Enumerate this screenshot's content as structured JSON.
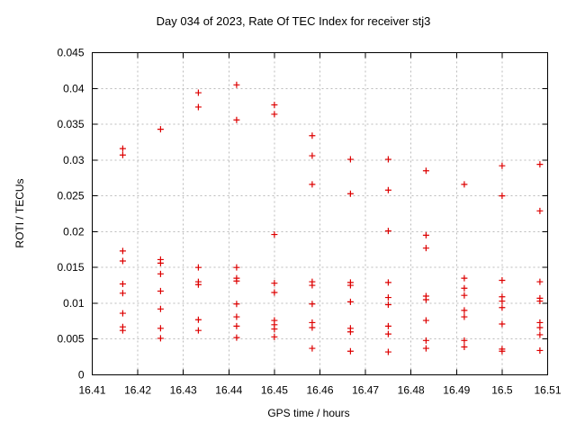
{
  "chart": {
    "title": "Day 034 of 2023, Rate Of TEC Index for receiver stj3",
    "xlabel": "GPS time / hours",
    "ylabel": "ROTI / TECUs"
  },
  "chart_data": {
    "type": "scatter",
    "title": "Day 034 of 2023, Rate Of TEC Index for receiver stj3",
    "xlabel": "GPS time / hours",
    "ylabel": "ROTI / TECUs",
    "xlim": [
      16.41,
      16.51
    ],
    "ylim": [
      0,
      0.045
    ],
    "xticks": [
      16.41,
      16.42,
      16.43,
      16.44,
      16.45,
      16.46,
      16.47,
      16.48,
      16.49,
      16.5,
      16.51
    ],
    "xtick_labels": [
      "16.41",
      "16.42",
      "16.43",
      "16.44",
      "16.45",
      "16.46",
      "16.47",
      "16.48",
      "16.49",
      "16.5",
      "16.51"
    ],
    "yticks": [
      0,
      0.005,
      0.01,
      0.015,
      0.02,
      0.025,
      0.03,
      0.035,
      0.04,
      0.045
    ],
    "ytick_labels": [
      "0",
      "0.005",
      "0.01",
      "0.015",
      "0.02",
      "0.025",
      "0.03",
      "0.035",
      "0.04",
      "0.045"
    ],
    "grid": true,
    "legend_position": "none",
    "marker": "plus",
    "colors": {
      "marker": "#dd0000",
      "grid": "#bbbbbb",
      "axis": "#000000",
      "background": "#ffffff"
    },
    "points": [
      [
        16.4167,
        0.0316
      ],
      [
        16.4167,
        0.0307
      ],
      [
        16.4167,
        0.0173
      ],
      [
        16.4167,
        0.0159
      ],
      [
        16.4167,
        0.0127
      ],
      [
        16.4167,
        0.0114
      ],
      [
        16.4167,
        0.0086
      ],
      [
        16.4167,
        0.0067
      ],
      [
        16.4167,
        0.0062
      ],
      [
        16.425,
        0.0343
      ],
      [
        16.425,
        0.0161
      ],
      [
        16.425,
        0.0156
      ],
      [
        16.425,
        0.0141
      ],
      [
        16.425,
        0.0117
      ],
      [
        16.425,
        0.0092
      ],
      [
        16.425,
        0.0065
      ],
      [
        16.425,
        0.0051
      ],
      [
        16.4333,
        0.0394
      ],
      [
        16.4333,
        0.0374
      ],
      [
        16.4333,
        0.015
      ],
      [
        16.4333,
        0.013
      ],
      [
        16.4333,
        0.0126
      ],
      [
        16.4333,
        0.0077
      ],
      [
        16.4333,
        0.0062
      ],
      [
        16.4417,
        0.0405
      ],
      [
        16.4417,
        0.0356
      ],
      [
        16.4417,
        0.015
      ],
      [
        16.4417,
        0.0135
      ],
      [
        16.4417,
        0.0131
      ],
      [
        16.4417,
        0.0099
      ],
      [
        16.4417,
        0.0081
      ],
      [
        16.4417,
        0.0068
      ],
      [
        16.4417,
        0.0052
      ],
      [
        16.45,
        0.0377
      ],
      [
        16.45,
        0.0364
      ],
      [
        16.45,
        0.0196
      ],
      [
        16.45,
        0.0128
      ],
      [
        16.45,
        0.0115
      ],
      [
        16.45,
        0.0076
      ],
      [
        16.45,
        0.007
      ],
      [
        16.45,
        0.0064
      ],
      [
        16.45,
        0.0053
      ],
      [
        16.4583,
        0.0334
      ],
      [
        16.4583,
        0.0306
      ],
      [
        16.4583,
        0.0266
      ],
      [
        16.4583,
        0.013
      ],
      [
        16.4583,
        0.0125
      ],
      [
        16.4583,
        0.0099
      ],
      [
        16.4583,
        0.0073
      ],
      [
        16.4583,
        0.0066
      ],
      [
        16.4583,
        0.0037
      ],
      [
        16.4667,
        0.0301
      ],
      [
        16.4667,
        0.0253
      ],
      [
        16.4667,
        0.0129
      ],
      [
        16.4667,
        0.0125
      ],
      [
        16.4667,
        0.0102
      ],
      [
        16.4667,
        0.0065
      ],
      [
        16.4667,
        0.006
      ],
      [
        16.4667,
        0.0033
      ],
      [
        16.475,
        0.0301
      ],
      [
        16.475,
        0.0258
      ],
      [
        16.475,
        0.0201
      ],
      [
        16.475,
        0.0129
      ],
      [
        16.475,
        0.0108
      ],
      [
        16.475,
        0.0098
      ],
      [
        16.475,
        0.0068
      ],
      [
        16.475,
        0.0057
      ],
      [
        16.475,
        0.0032
      ],
      [
        16.4833,
        0.0285
      ],
      [
        16.4833,
        0.0195
      ],
      [
        16.4833,
        0.0177
      ],
      [
        16.4833,
        0.011
      ],
      [
        16.4833,
        0.0105
      ],
      [
        16.4833,
        0.0076
      ],
      [
        16.4833,
        0.0048
      ],
      [
        16.4833,
        0.0037
      ],
      [
        16.4917,
        0.0266
      ],
      [
        16.4917,
        0.0135
      ],
      [
        16.4917,
        0.0121
      ],
      [
        16.4917,
        0.0111
      ],
      [
        16.4917,
        0.009
      ],
      [
        16.4917,
        0.0081
      ],
      [
        16.4917,
        0.0048
      ],
      [
        16.4917,
        0.0039
      ],
      [
        16.5,
        0.0292
      ],
      [
        16.5,
        0.025
      ],
      [
        16.5,
        0.0132
      ],
      [
        16.5,
        0.0109
      ],
      [
        16.5,
        0.0103
      ],
      [
        16.5,
        0.0094
      ],
      [
        16.5,
        0.0071
      ],
      [
        16.5,
        0.0036
      ],
      [
        16.5,
        0.0033
      ],
      [
        16.5083,
        0.0294
      ],
      [
        16.5083,
        0.0229
      ],
      [
        16.5083,
        0.013
      ],
      [
        16.5083,
        0.0107
      ],
      [
        16.5083,
        0.0103
      ],
      [
        16.5083,
        0.0073
      ],
      [
        16.5083,
        0.0066
      ],
      [
        16.5083,
        0.0056
      ],
      [
        16.5083,
        0.0034
      ]
    ]
  }
}
